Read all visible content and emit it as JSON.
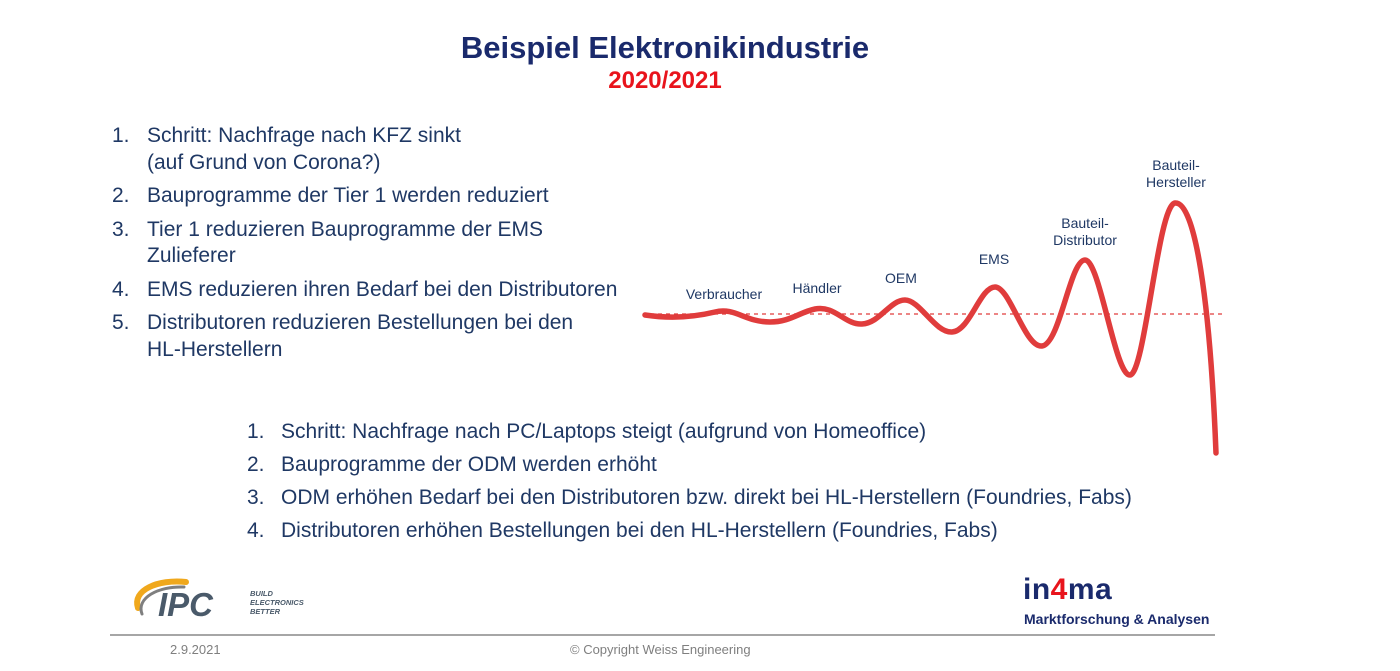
{
  "title": "Beispiel Elektronikindustrie",
  "subtitle": "2020/2021",
  "list1": [
    {
      "num": "1.",
      "text": "Schritt: Nachfrage nach KFZ sinkt",
      "text2": "(auf Grund von Corona?)"
    },
    {
      "num": "2.",
      "text": "Bauprogramme der Tier 1 werden reduziert",
      "text2": ""
    },
    {
      "num": "3.",
      "text": "Tier 1 reduzieren Bauprogramme der EMS",
      "text2": "Zulieferer"
    },
    {
      "num": "4.",
      "text": "EMS reduzieren ihren Bedarf bei den Distributoren",
      "text2": ""
    },
    {
      "num": "5.",
      "text": "Distributoren reduzieren Bestellungen bei den",
      "text2": "HL-Herstellern"
    }
  ],
  "list2": [
    {
      "num": "1.",
      "text": "Schritt: Nachfrage nach PC/Laptops steigt (aufgrund von Homeoffice)"
    },
    {
      "num": "2.",
      "text": "Bauprogramme der ODM werden erhöht"
    },
    {
      "num": "3.",
      "text": "ODM erhöhen Bedarf bei den Distributoren bzw. direkt bei HL-Herstellern (Foundries, Fabs)"
    },
    {
      "num": "4.",
      "text": "Distributoren erhöhen Bestellungen bei den HL-Herstellern (Foundries, Fabs)"
    }
  ],
  "wave_labels": {
    "verbraucher": "Verbraucher",
    "haendler": "Händler",
    "oem": "OEM",
    "ems": "EMS",
    "distributor_1": "Bauteil-",
    "distributor_2": "Distributor",
    "hersteller_1": "Bauteil-",
    "hersteller_2": "Hersteller"
  },
  "colors": {
    "wave": "#e03c3c",
    "title": "#1a2a6c",
    "subtitle": "#e8141c"
  },
  "footer": {
    "date": "2.9.2021",
    "copyright": "© Copyright Weiss Engineering",
    "ipc_logo": "IPC",
    "ipc_tagline_1": "BUILD",
    "ipc_tagline_2": "ELECTRONICS",
    "ipc_tagline_3": "BETTER",
    "in4ma_a": "in",
    "in4ma_b": "4",
    "in4ma_c": "ma",
    "in4ma_tag": "Marktforschung & Analysen"
  }
}
